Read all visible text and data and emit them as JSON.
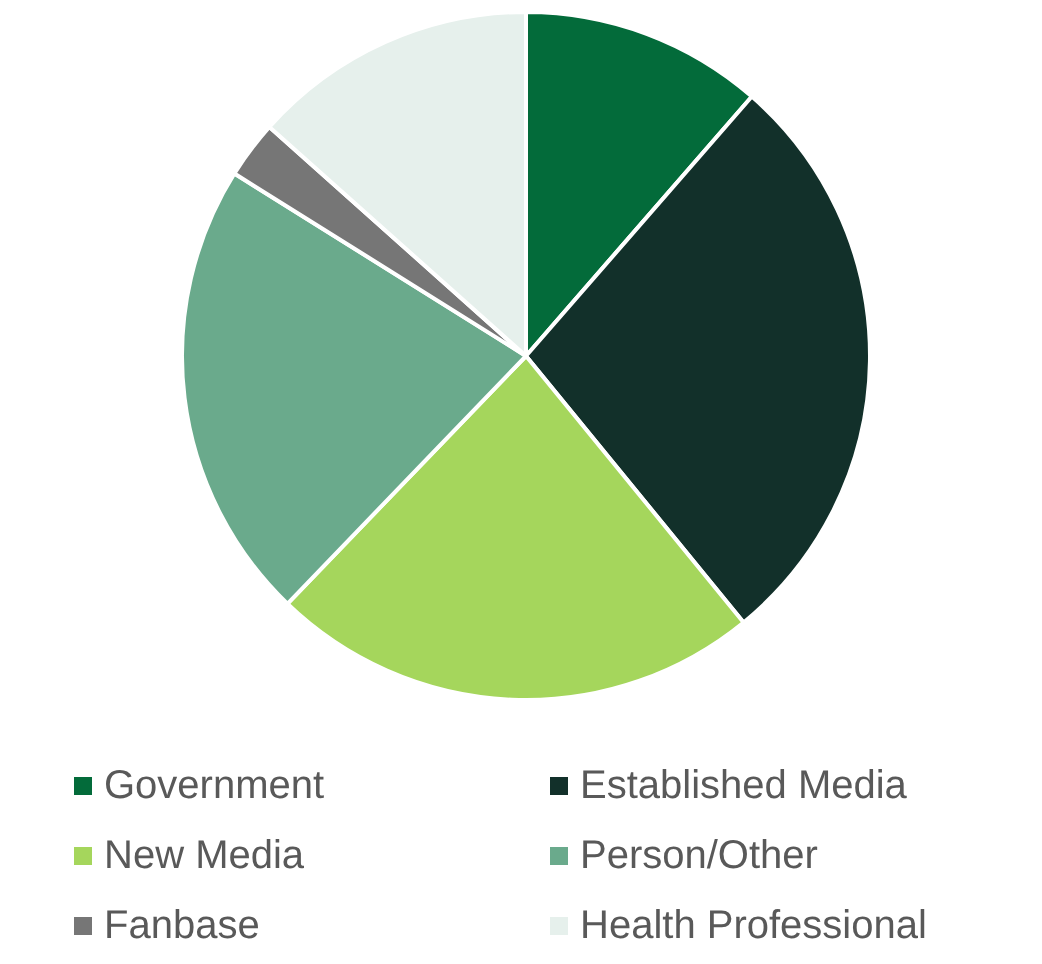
{
  "chart_data": {
    "type": "pie",
    "categories": [
      "Government",
      "Established Media",
      "New Media",
      "Person/Other",
      "Fanbase",
      "Health Professional"
    ],
    "values": [
      11.4,
      27.7,
      23.1,
      21.7,
      2.7,
      13.4
    ],
    "colors": [
      "#036b3a",
      "#12302a",
      "#a5d65c",
      "#6aaa8c",
      "#767676",
      "#e6f0ec"
    ],
    "legend": "bottom"
  }
}
